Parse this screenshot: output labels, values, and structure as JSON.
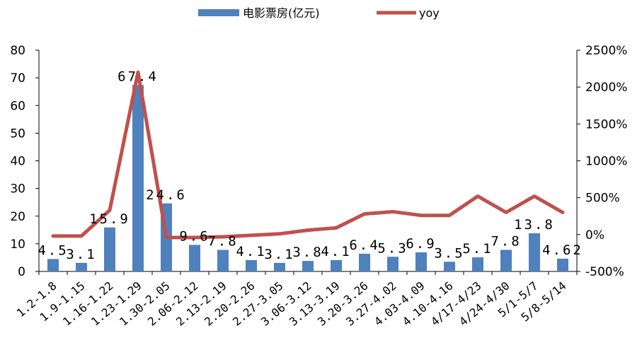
{
  "chart_data": {
    "type": "bar",
    "categories": [
      "1.2-1.8",
      "1.9-1.15",
      "1.16-1.22",
      "1.23-1.29",
      "1.30-2.05",
      "2.06-2.12",
      "2.13-2.19",
      "2.20-2.26",
      "2.27-3.05",
      "3.06-3.12",
      "3.13-3.19",
      "3.20-3.26",
      "3.27-4.02",
      "4.03-4.09",
      "4.10-4.16",
      "4/17-4/23",
      "4/24-4/30",
      "5/1-5/7",
      "5/8-5/14"
    ],
    "category_display": [
      "1.2-1.8",
      "1.9-1.15",
      "1.16-1.22",
      "1.23-1.29",
      "1.30-2.05",
      "2.06-2.12",
      "2.13-2.19",
      "2.20-2.26",
      "2.27-3.05",
      "3.06-3.12",
      "3.13-3.19",
      "3.20-3.26",
      "3.27-4.02",
      "4.03-4.09",
      "4.10-4.16",
      "4/17-4/23",
      "4/24-4/30",
      "5/1-5/7",
      "5/8-5/14"
    ],
    "series": [
      {
        "name": "电影票房(亿元)",
        "type": "bar",
        "axis": "left",
        "color": "#4f81bd",
        "values": [
          4.5,
          3.1,
          15.9,
          67.4,
          24.6,
          9.6,
          7.8,
          4.1,
          3.1,
          3.8,
          4.1,
          6.4,
          5.3,
          6.9,
          3.5,
          5.1,
          7.8,
          13.8,
          4.62
        ],
        "labels": [
          "4.5",
          "3.1",
          "15.9",
          "67.4",
          "24.6",
          "9.6",
          "7.8",
          "4.1",
          "3.1",
          "3.8",
          "4.1",
          "6.4",
          "5.3",
          "6.9",
          "3.5",
          "5.1",
          "7.8",
          "13.8",
          "4.62"
        ]
      },
      {
        "name": "yoy",
        "type": "line",
        "axis": "right",
        "color": "#c0504d",
        "values": [
          -20,
          -20,
          330,
          2200,
          -40,
          -40,
          -30,
          -10,
          10,
          60,
          90,
          280,
          310,
          260,
          260,
          520,
          300,
          520,
          300
        ]
      }
    ],
    "y_left": {
      "ylim": [
        0,
        80
      ],
      "ticks": [
        "0",
        "10",
        "20",
        "30",
        "40",
        "50",
        "60",
        "70",
        "80"
      ]
    },
    "y_right": {
      "ylim": [
        -500,
        2500
      ],
      "ticks": [
        "-500%",
        "0%",
        "500%",
        "1000%",
        "1500%",
        "2000%",
        "2500%"
      ]
    },
    "grid": false,
    "legend_position": "top-center"
  }
}
